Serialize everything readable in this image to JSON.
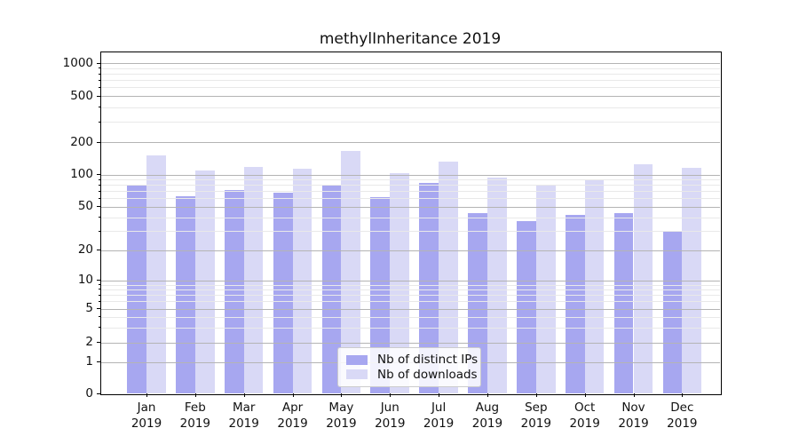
{
  "figure": {
    "title": "methylInheritance 2019"
  },
  "chart_data": {
    "type": "bar",
    "title": "methylInheritance 2019",
    "categories": [
      "Jan",
      "Feb",
      "Mar",
      "Apr",
      "May",
      "Jun",
      "Jul",
      "Aug",
      "Sep",
      "Oct",
      "Nov",
      "Dec"
    ],
    "year_label": "2019",
    "series": [
      {
        "name": "Nb of distinct IPs",
        "color": "#a7a7f0",
        "values": [
          78,
          62,
          72,
          68,
          78,
          61,
          84,
          44,
          37,
          42,
          44,
          30
        ]
      },
      {
        "name": "Nb of downloads",
        "color": "#d9d9f6",
        "values": [
          150,
          109,
          118,
          114,
          165,
          103,
          132,
          93,
          78,
          90,
          124,
          116
        ]
      }
    ],
    "xlabel": "",
    "ylabel": "",
    "y_ticks": [
      0,
      1,
      2,
      5,
      10,
      20,
      50,
      100,
      200,
      500,
      1000
    ],
    "y_scale": "symlog",
    "ylim": [
      0,
      1000
    ],
    "grid": "horizontal major + minor log gridlines",
    "legend_position": "lower center inside plot",
    "colors": {
      "bar_distinct_ips": "#a7a7f0",
      "bar_downloads": "#d9d9f6",
      "major_grid": "#b4b4b4",
      "minor_grid": "#e9e9e9",
      "axis": "#000000",
      "text": "#111111",
      "legend_border": "#cccccc",
      "legend_background": "rgba(255,255,255,0.85)"
    }
  }
}
